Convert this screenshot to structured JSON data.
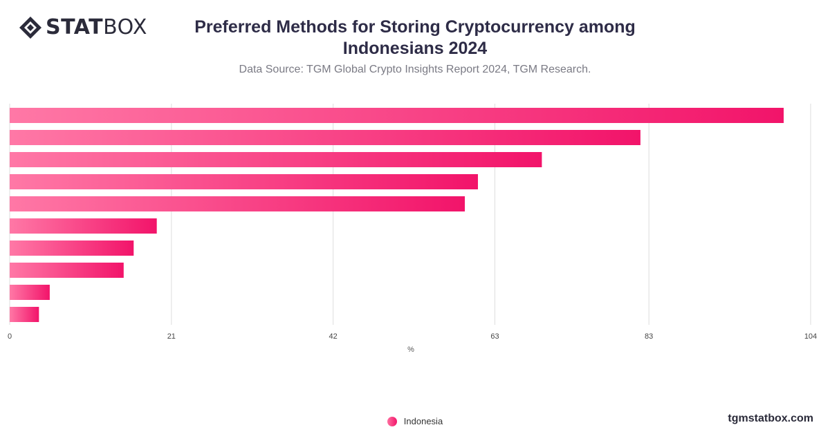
{
  "brand": {
    "logo_strong": "STAT",
    "logo_light": "BOX",
    "website": "tgmstatbox.com"
  },
  "title_lines": [
    "Preferred Methods for Storing Cryptocurrency among",
    "Indonesians 2024"
  ],
  "subtitle": "Data Source: TGM Global Crypto Insights Report 2024, TGM Research.",
  "colors": {
    "bar_start": "#ff78a6",
    "bar_end": "#f2146a",
    "grid": "#dddddd",
    "text": "#2e2c47"
  },
  "chart_data": {
    "type": "bar",
    "orientation": "horizontal",
    "categories": [
      "",
      "",
      "",
      "",
      "",
      "",
      "",
      "",
      "",
      ""
    ],
    "series": [
      {
        "name": "Indonesia",
        "values": [
          100.5,
          81.9,
          69.1,
          60.8,
          59.1,
          19.1,
          16.1,
          14.8,
          5.2,
          3.8
        ]
      }
    ],
    "xlabel": "%",
    "xlim": [
      0,
      104
    ],
    "xticks": [
      0,
      21,
      42,
      63,
      83,
      104
    ],
    "grid": true,
    "legend": "bottom-center"
  }
}
